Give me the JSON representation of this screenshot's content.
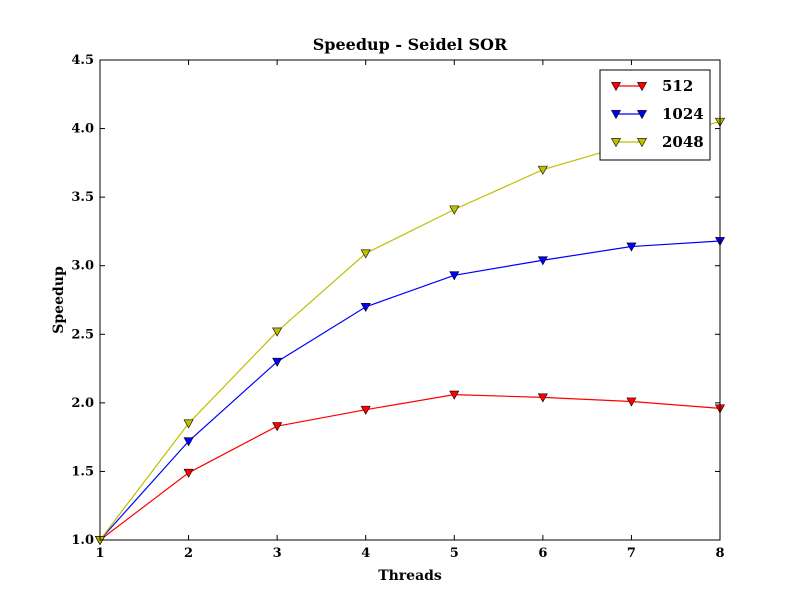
{
  "chart_data": {
    "type": "line",
    "title": "Speedup - Seidel SOR",
    "xlabel": "Threads",
    "ylabel": "Speedup",
    "x": [
      1,
      2,
      3,
      4,
      5,
      6,
      7,
      8
    ],
    "xlim": [
      1,
      8
    ],
    "ylim": [
      1.0,
      4.5
    ],
    "xticks": [
      "1",
      "2",
      "3",
      "4",
      "5",
      "6",
      "7",
      "8"
    ],
    "yticks": [
      "1.0",
      "1.5",
      "2.0",
      "2.5",
      "3.0",
      "3.5",
      "4.0",
      "4.5"
    ],
    "grid": false,
    "legend_position": "top-right",
    "marker": "triangle-down",
    "series": [
      {
        "name": "512",
        "color": "#ff0000",
        "values": [
          1.0,
          1.49,
          1.83,
          1.95,
          2.06,
          2.04,
          2.01,
          1.96
        ]
      },
      {
        "name": "1024",
        "color": "#0000ff",
        "values": [
          1.0,
          1.72,
          2.3,
          2.7,
          2.93,
          3.04,
          3.14,
          3.18
        ]
      },
      {
        "name": "2048",
        "color": "#bfbf00",
        "values": [
          1.0,
          1.85,
          2.52,
          3.09,
          3.41,
          3.7,
          3.89,
          4.05
        ]
      }
    ]
  }
}
